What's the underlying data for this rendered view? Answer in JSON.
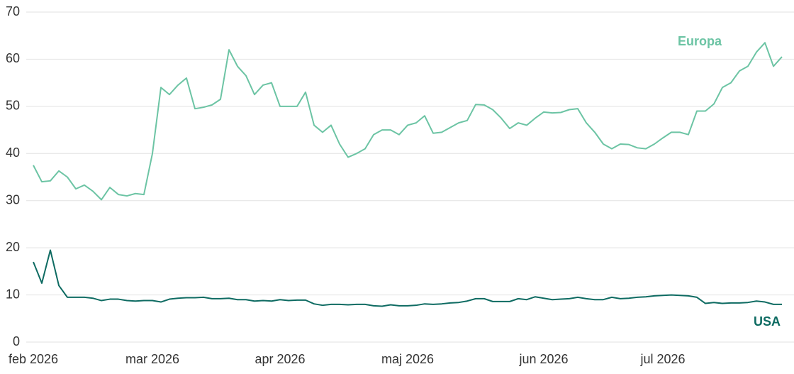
{
  "chart_data": {
    "type": "line",
    "categories": [
      "feb 2026",
      null,
      null,
      null,
      null,
      null,
      null,
      null,
      null,
      null,
      null,
      null,
      null,
      null,
      "mar 2026",
      null,
      null,
      null,
      null,
      null,
      null,
      null,
      null,
      null,
      null,
      null,
      null,
      null,
      null,
      "apr 2026",
      null,
      null,
      null,
      null,
      null,
      null,
      null,
      null,
      null,
      null,
      null,
      null,
      null,
      null,
      "maj 2026",
      null,
      null,
      null,
      null,
      null,
      null,
      null,
      null,
      null,
      null,
      null,
      null,
      null,
      null,
      null,
      "jun 2026",
      null,
      null,
      null,
      null,
      null,
      null,
      null,
      null,
      null,
      null,
      null,
      null,
      null,
      "jul 2026",
      null,
      null,
      null,
      null,
      null,
      null,
      null,
      null,
      null,
      null,
      null,
      null,
      null,
      null
    ],
    "series": [
      {
        "name": "Europa",
        "color": "#6cc4a4",
        "values": [
          37.5,
          34,
          34.2,
          36.3,
          35,
          32.5,
          33.3,
          32,
          30.2,
          32.8,
          31.3,
          31,
          31.5,
          31.3,
          40,
          54,
          52.5,
          54.5,
          56,
          49.5,
          49.8,
          50.3,
          51.5,
          62,
          58.5,
          56.5,
          52.5,
          54.5,
          55,
          50,
          50,
          50,
          53,
          46,
          44.5,
          46,
          42,
          39.2,
          40,
          41,
          44,
          45,
          45,
          44,
          46,
          46.5,
          48,
          44.3,
          44.5,
          45.5,
          46.5,
          47,
          50.4,
          50.3,
          49.3,
          47.5,
          45.3,
          46.5,
          46,
          47.5,
          48.8,
          48.6,
          48.7,
          49.3,
          49.5,
          46.5,
          44.5,
          42,
          41,
          42,
          41.9,
          41.2,
          41,
          42,
          43.3,
          44.5,
          44.5,
          44,
          49,
          49,
          50.5,
          54,
          55,
          57.5,
          58.5,
          61.5,
          63.5,
          58.5,
          60.5
        ]
      },
      {
        "name": "USA",
        "color": "#0e6b62",
        "values": [
          17,
          12.5,
          19.5,
          12,
          9.5,
          9.5,
          9.5,
          9.3,
          8.8,
          9.1,
          9.1,
          8.8,
          8.7,
          8.8,
          8.8,
          8.5,
          9.1,
          9.3,
          9.4,
          9.4,
          9.5,
          9.2,
          9.2,
          9.3,
          9.0,
          9.0,
          8.7,
          8.8,
          8.7,
          9.0,
          8.8,
          8.9,
          8.9,
          8.1,
          7.8,
          8.0,
          8.0,
          7.9,
          8.0,
          8.0,
          7.7,
          7.6,
          7.9,
          7.7,
          7.7,
          7.8,
          8.1,
          8.0,
          8.1,
          8.3,
          8.4,
          8.7,
          9.2,
          9.2,
          8.6,
          8.6,
          8.6,
          9.2,
          9.0,
          9.6,
          9.3,
          9.0,
          9.1,
          9.2,
          9.5,
          9.2,
          9.0,
          9.0,
          9.5,
          9.2,
          9.3,
          9.5,
          9.6,
          9.8,
          9.9,
          10,
          9.9,
          9.8,
          9.5,
          8.2,
          8.4,
          8.2,
          8.3,
          8.3,
          8.4,
          8.7,
          8.5,
          8.0,
          8.0
        ]
      }
    ],
    "ylim": [
      0,
      70
    ],
    "yticks": [
      0,
      10,
      20,
      30,
      40,
      50,
      60,
      70
    ],
    "grid": true
  }
}
